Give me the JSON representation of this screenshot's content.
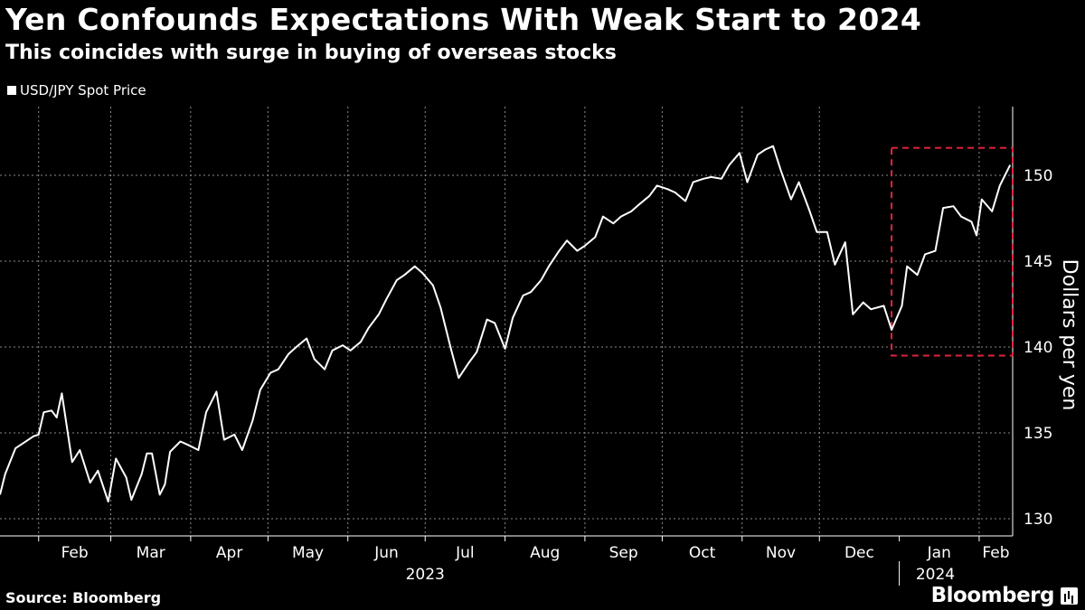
{
  "header": {
    "title": "Yen Confounds Expectations With Weak Start to 2024",
    "subtitle": "This coincides with surge in buying of overseas stocks"
  },
  "footer": {
    "source": "Source: Bloomberg",
    "brand": "Bloomberg"
  },
  "colors": {
    "background": "#000000",
    "line": "#ffffff",
    "grid": "#8a8a8a",
    "highlight_box": "#e0243c"
  },
  "chart_data": {
    "type": "line",
    "title": "Yen Confounds Expectations With Weak Start to 2024",
    "subtitle": "This coincides with surge in buying of overseas stocks",
    "ylabel": "Dollars per yen",
    "xlabel": "",
    "ylim": [
      129,
      154
    ],
    "y_ticks": [
      130,
      135,
      140,
      145,
      150
    ],
    "x_tick_labels": [
      "Feb",
      "Mar",
      "Apr",
      "May",
      "Jun",
      "Jul",
      "Aug",
      "Sep",
      "Oct",
      "Nov",
      "Dec",
      "Jan",
      "Feb"
    ],
    "x_tick_dates": [
      "2023-02-01",
      "2023-03-01",
      "2023-04-01",
      "2023-05-01",
      "2023-06-01",
      "2023-07-01",
      "2023-08-01",
      "2023-09-01",
      "2023-10-01",
      "2023-11-01",
      "2023-12-01",
      "2024-01-01",
      "2024-02-01"
    ],
    "year_labels": [
      {
        "label": "2023",
        "date": "2023-07-01"
      },
      {
        "label": "2024",
        "date": "2024-01-15"
      }
    ],
    "xlim": [
      "2023-01-17",
      "2024-02-14"
    ],
    "grid": true,
    "legend_position": "top-left",
    "series": [
      {
        "name": "USD/JPY Spot Price",
        "x": [
          "2023-01-17",
          "2023-01-19",
          "2023-01-23",
          "2023-01-26",
          "2023-01-30",
          "2023-02-01",
          "2023-02-03",
          "2023-02-06",
          "2023-02-08",
          "2023-02-10",
          "2023-02-14",
          "2023-02-17",
          "2023-02-21",
          "2023-02-24",
          "2023-02-28",
          "2023-03-03",
          "2023-03-07",
          "2023-03-09",
          "2023-03-13",
          "2023-03-15",
          "2023-03-17",
          "2023-03-20",
          "2023-03-22",
          "2023-03-24",
          "2023-03-28",
          "2023-03-31",
          "2023-04-04",
          "2023-04-07",
          "2023-04-11",
          "2023-04-14",
          "2023-04-18",
          "2023-04-21",
          "2023-04-25",
          "2023-04-28",
          "2023-05-02",
          "2023-05-05",
          "2023-05-09",
          "2023-05-12",
          "2023-05-16",
          "2023-05-19",
          "2023-05-23",
          "2023-05-26",
          "2023-05-30",
          "2023-06-02",
          "2023-06-06",
          "2023-06-09",
          "2023-06-13",
          "2023-06-16",
          "2023-06-20",
          "2023-06-23",
          "2023-06-27",
          "2023-06-30",
          "2023-07-04",
          "2023-07-07",
          "2023-07-11",
          "2023-07-14",
          "2023-07-18",
          "2023-07-21",
          "2023-07-25",
          "2023-07-28",
          "2023-08-01",
          "2023-08-04",
          "2023-08-08",
          "2023-08-11",
          "2023-08-15",
          "2023-08-18",
          "2023-08-22",
          "2023-08-25",
          "2023-08-29",
          "2023-09-01",
          "2023-09-05",
          "2023-09-08",
          "2023-09-12",
          "2023-09-15",
          "2023-09-19",
          "2023-09-22",
          "2023-09-26",
          "2023-09-29",
          "2023-10-03",
          "2023-10-06",
          "2023-10-10",
          "2023-10-13",
          "2023-10-17",
          "2023-10-20",
          "2023-10-24",
          "2023-10-27",
          "2023-10-31",
          "2023-11-03",
          "2023-11-07",
          "2023-11-10",
          "2023-11-13",
          "2023-11-16",
          "2023-11-20",
          "2023-11-23",
          "2023-11-27",
          "2023-11-30",
          "2023-12-04",
          "2023-12-07",
          "2023-12-11",
          "2023-12-14",
          "2023-12-18",
          "2023-12-21",
          "2023-12-26",
          "2023-12-29",
          "2024-01-02",
          "2024-01-04",
          "2024-01-08",
          "2024-01-11",
          "2024-01-15",
          "2024-01-18",
          "2024-01-22",
          "2024-01-25",
          "2024-01-29",
          "2024-01-31",
          "2024-02-02",
          "2024-02-06",
          "2024-02-09",
          "2024-02-13"
        ],
        "values": [
          131.4,
          132.6,
          134.1,
          134.4,
          134.8,
          134.9,
          136.2,
          136.3,
          135.9,
          137.3,
          133.3,
          134.0,
          132.1,
          132.8,
          131.0,
          133.5,
          132.4,
          131.1,
          132.6,
          133.8,
          133.8,
          131.4,
          132.0,
          133.9,
          134.5,
          134.3,
          134.0,
          136.2,
          137.4,
          134.6,
          134.9,
          134.0,
          135.7,
          137.5,
          138.5,
          138.7,
          139.6,
          140.0,
          140.5,
          139.3,
          138.7,
          139.8,
          140.1,
          139.8,
          140.3,
          141.1,
          141.9,
          142.8,
          143.9,
          144.2,
          144.7,
          144.3,
          143.6,
          142.3,
          139.9,
          138.2,
          139.1,
          139.7,
          141.6,
          141.4,
          139.9,
          141.7,
          143.0,
          143.2,
          143.9,
          144.7,
          145.6,
          146.2,
          145.6,
          145.9,
          146.4,
          147.6,
          147.2,
          147.6,
          147.9,
          148.3,
          148.8,
          149.4,
          149.2,
          149.0,
          148.5,
          149.6,
          149.8,
          149.9,
          149.8,
          150.6,
          151.3,
          149.6,
          151.2,
          151.5,
          151.7,
          150.3,
          148.6,
          149.6,
          148.0,
          146.7,
          146.7,
          144.8,
          146.1,
          141.9,
          142.6,
          142.2,
          142.4,
          141.0,
          142.4,
          144.7,
          144.2,
          145.4,
          145.6,
          148.1,
          148.2,
          147.6,
          147.3,
          146.5,
          148.6,
          147.9,
          149.4,
          150.6
        ]
      }
    ],
    "highlight": {
      "x": [
        "2023-12-29",
        "2024-02-14"
      ],
      "y": [
        139.5,
        151.6
      ]
    }
  }
}
